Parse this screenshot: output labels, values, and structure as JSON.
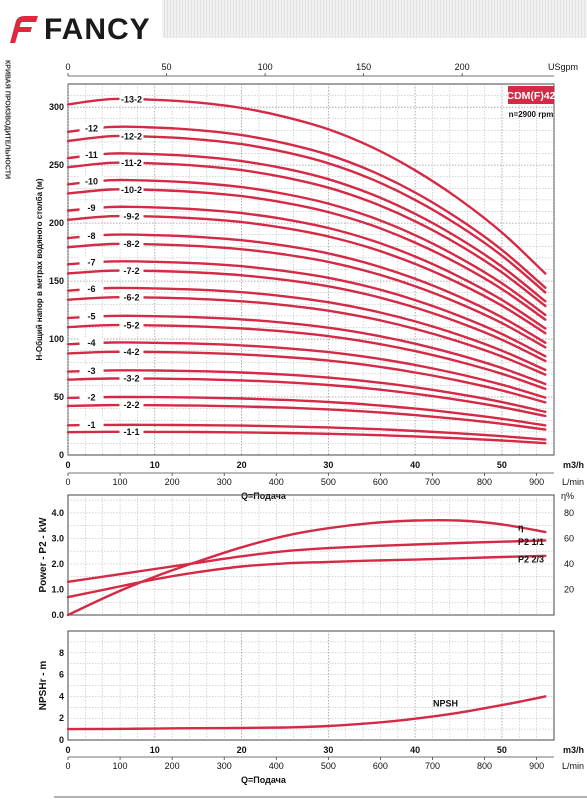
{
  "brand": {
    "name": "FANCY",
    "color": "#e1263f"
  },
  "side_caption": "КРИВАЯ ПРОИЗВОДИТЕЛЬНОСТИ",
  "colors": {
    "curve": "#d42a45",
    "grid": "#9a9a9a"
  },
  "chart_data": [
    {
      "type": "line",
      "title": "CDM(F)42",
      "subtitle": "n=2900 rpm",
      "ylabel": "H-Общий напор в метрах водяного столба (м)",
      "xlabel": "Q=Подача",
      "x_unit": "m3/h",
      "x_unit_lmin": "L/min",
      "x_unit_usgpm": "USgpm",
      "xlim": [
        0,
        56
      ],
      "ylim": [
        0,
        320
      ],
      "xticks": [
        0,
        10,
        20,
        30,
        40,
        50
      ],
      "xticks_lmin": [
        0,
        100,
        200,
        300,
        400,
        500,
        600,
        700,
        800,
        900
      ],
      "xticks_usgpm": [
        0,
        50,
        100,
        150,
        200
      ],
      "yticks": [
        0,
        50,
        100,
        150,
        200,
        250,
        300
      ],
      "grid": true,
      "curve_x": [
        0,
        5,
        10,
        15,
        20,
        25,
        30,
        35,
        40,
        45,
        50,
        55
      ],
      "curve_shape": [
        0.985,
        1.0,
        0.998,
        0.99,
        0.975,
        0.95,
        0.915,
        0.865,
        0.8,
        0.72,
        0.625,
        0.51
      ],
      "series": [
        {
          "name": "-1-1",
          "h0": 20
        },
        {
          "name": "-1",
          "h0": 26
        },
        {
          "name": "-2-2",
          "h0": 43
        },
        {
          "name": "-2",
          "h0": 50
        },
        {
          "name": "-3-2",
          "h0": 66
        },
        {
          "name": "-3",
          "h0": 73
        },
        {
          "name": "-4-2",
          "h0": 89
        },
        {
          "name": "-4",
          "h0": 97
        },
        {
          "name": "-5-2",
          "h0": 112
        },
        {
          "name": "-5",
          "h0": 120
        },
        {
          "name": "-6-2",
          "h0": 136
        },
        {
          "name": "-6",
          "h0": 144
        },
        {
          "name": "-7-2",
          "h0": 159
        },
        {
          "name": "-7",
          "h0": 167
        },
        {
          "name": "-8-2",
          "h0": 182
        },
        {
          "name": "-8",
          "h0": 190
        },
        {
          "name": "-9-2",
          "h0": 206
        },
        {
          "name": "-9",
          "h0": 214
        },
        {
          "name": "-10-2",
          "h0": 229
        },
        {
          "name": "-10",
          "h0": 237
        },
        {
          "name": "-11-2",
          "h0": 252
        },
        {
          "name": "-11",
          "h0": 260
        },
        {
          "name": "-12-2",
          "h0": 275
        },
        {
          "name": "-12",
          "h0": 283
        },
        {
          "name": "-13-2",
          "h0": 307
        }
      ]
    },
    {
      "type": "line",
      "ylabel": "Power - P2 - kW",
      "y2label": "η%",
      "ylim": [
        0,
        4.7
      ],
      "yticks": [
        0,
        1.0,
        2.0,
        3.0,
        4.0
      ],
      "y2lim": [
        0,
        94
      ],
      "y2ticks": [
        20,
        40,
        60,
        80
      ],
      "xlim": [
        0,
        56
      ],
      "series": [
        {
          "name": "η",
          "axis": "right",
          "x": [
            0,
            5,
            10,
            15,
            20,
            25,
            30,
            35,
            40,
            45,
            50,
            55
          ],
          "y": [
            0,
            16,
            30,
            42,
            53,
            62,
            68,
            72,
            74,
            74,
            71,
            65
          ]
        },
        {
          "name": "P2 1/1",
          "axis": "left",
          "x": [
            0,
            5,
            10,
            15,
            20,
            25,
            30,
            35,
            40,
            45,
            50,
            55
          ],
          "y": [
            1.3,
            1.55,
            1.8,
            2.05,
            2.3,
            2.5,
            2.62,
            2.7,
            2.76,
            2.82,
            2.87,
            2.92
          ]
        },
        {
          "name": "P2 2/3",
          "axis": "left",
          "x": [
            0,
            5,
            10,
            15,
            20,
            25,
            30,
            35,
            40,
            45,
            50,
            55
          ],
          "y": [
            0.7,
            1.05,
            1.4,
            1.68,
            1.9,
            2.02,
            2.08,
            2.13,
            2.17,
            2.22,
            2.27,
            2.32
          ]
        }
      ]
    },
    {
      "type": "line",
      "ylabel": "NPSHr - m",
      "xlabel": "Q=Подача",
      "x_unit": "m3/h",
      "x_unit_lmin": "L/min",
      "xlim": [
        0,
        56
      ],
      "ylim": [
        0,
        10
      ],
      "yticks": [
        0,
        2,
        4,
        6,
        8
      ],
      "series": [
        {
          "name": "NPSH",
          "x": [
            0,
            5,
            10,
            15,
            20,
            25,
            30,
            35,
            40,
            45,
            50,
            55
          ],
          "y": [
            1.0,
            1.02,
            1.05,
            1.08,
            1.1,
            1.15,
            1.28,
            1.55,
            1.95,
            2.5,
            3.2,
            4.0
          ]
        }
      ]
    }
  ]
}
